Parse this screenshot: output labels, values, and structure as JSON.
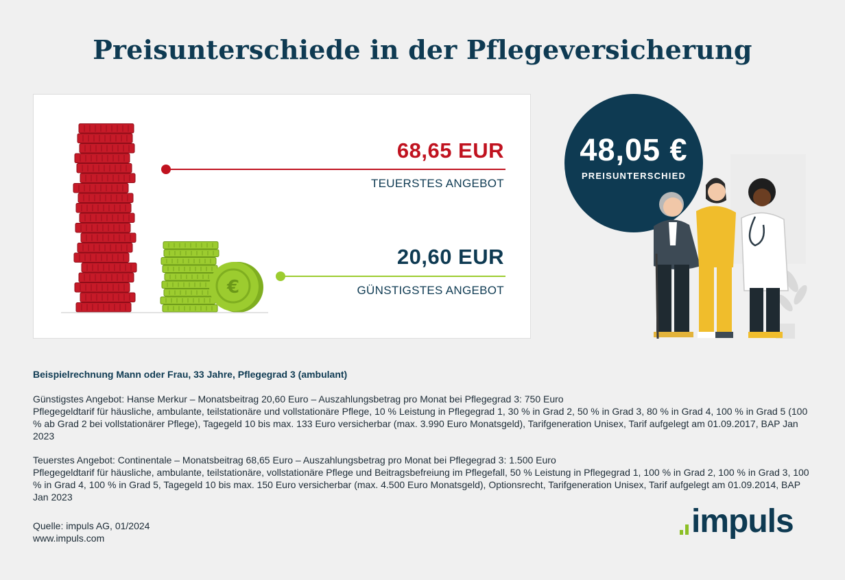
{
  "title": "Preisunterschiede in der Pflegeversicherung",
  "prices": {
    "high_value": "68,65 EUR",
    "high_label": "TEUERSTES ANGEBOT",
    "low_value": "20,60 EUR",
    "low_label": "GÜNSTIGSTES ANGEBOT"
  },
  "difference": {
    "amount": "48,05 €",
    "label": "PREISUNTERSCHIED"
  },
  "colors": {
    "navy": "#0e3a52",
    "red": "#c0121f",
    "green": "#8cbf26"
  },
  "icons": [
    "red-coin-stack",
    "green-coin-stack",
    "euro-coin",
    "caregivers-illustration"
  ],
  "details": {
    "heading": "Beispielrechnung Mann oder Frau, 33 Jahre, Pflegegrad 3 (ambulant)",
    "cheapest_line1": "Günstigstes Angebot: Hanse Merkur – Monatsbeitrag 20,60 Euro – Auszahlungsbetrag pro Monat bei Pflegegrad 3: 750 Euro",
    "cheapest_line2": "Pflegegeldtarif für häusliche, ambulante, teilstationäre und vollstationäre Pflege, 10 % Leistung in Pflegegrad 1, 30 % in Grad 2, 50 % in Grad 3, 80 % in Grad 4, 100 % in Grad 5 (100 % ab Grad 2 bei vollstationärer Pflege), Tagegeld 10 bis max. 133 Euro versicherbar (max. 3.990 Euro Monatsgeld), Tarifgeneration Unisex, Tarif aufgelegt am 01.09.2017, BAP Jan 2023",
    "expensive_line1": "Teuerstes Angebot: Continentale – Monatsbeitrag 68,65 Euro – Auszahlungsbetrag pro Monat bei Pflegegrad 3: 1.500 Euro",
    "expensive_line2": "Pflegegeldtarif für häusliche, ambulante, teilstationäre, vollstationäre Pflege und Beitragsbefreiung im Pflegefall, 50 % Leistung in Pflegegrad 1, 100 % in Grad 2, 100 % in Grad 3, 100 % in Grad 4, 100 % in Grad 5, Tagegeld 10 bis max. 150 Euro versicherbar (max. 4.500 Euro Monatsgeld), Optionsrecht, Tarifgeneration Unisex, Tarif aufgelegt am 01.09.2014, BAP Jan 2023"
  },
  "source": {
    "line1": "Quelle: impuls AG, 01/2024",
    "line2": "www.impuls.com"
  },
  "logo": {
    "text": "impuls"
  }
}
